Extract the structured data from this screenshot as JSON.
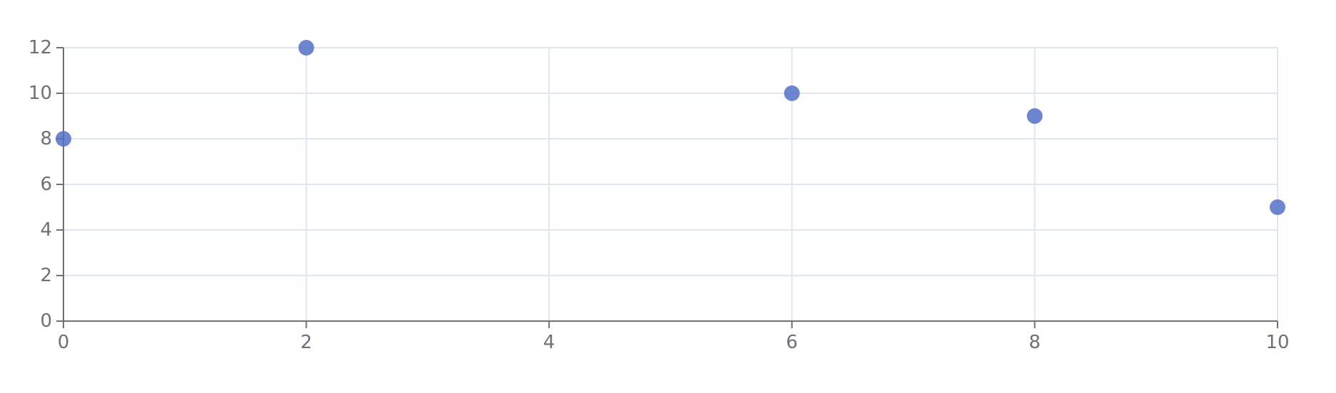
{
  "chart_data": {
    "type": "scatter",
    "title": "",
    "xlabel": "",
    "ylabel": "",
    "xlim": [
      0,
      10
    ],
    "ylim": [
      0,
      12
    ],
    "x_ticks": [
      0,
      2,
      4,
      6,
      8,
      10
    ],
    "y_ticks": [
      0,
      2,
      4,
      6,
      8,
      10,
      12
    ],
    "grid": true,
    "legend": "none",
    "colors": {
      "point": "#5470c6",
      "grid": "#e0e6f1",
      "axis": "#6e7079"
    },
    "series": [
      {
        "points": [
          {
            "x": 0,
            "y": 8
          },
          {
            "x": 2,
            "y": 12
          },
          {
            "x": 6,
            "y": 10
          },
          {
            "x": 8,
            "y": 9
          },
          {
            "x": 10,
            "y": 5
          }
        ]
      }
    ]
  }
}
